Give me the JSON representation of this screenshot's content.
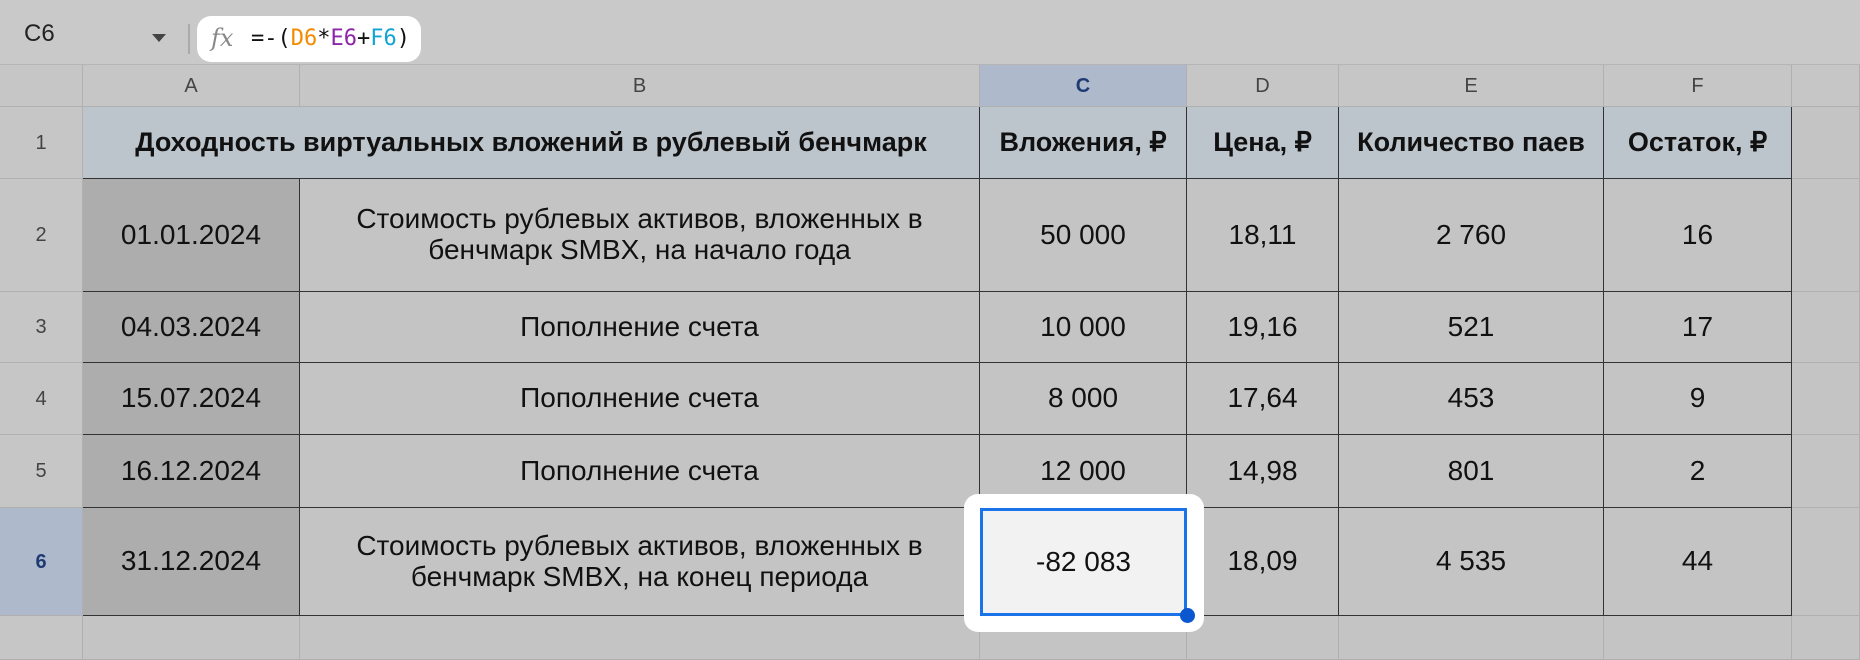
{
  "toolbar": {
    "name_box": "C6",
    "formula_prefix": "=-(",
    "ref1": "D6",
    "op1": "*",
    "ref2": "E6",
    "op2": "+",
    "ref3": "F6",
    "formula_suffix": ")",
    "ref_colors": [
      "#f28b00",
      "#8e24aa",
      "#12a4d4"
    ]
  },
  "columns": [
    "A",
    "B",
    "C",
    "D",
    "E",
    "F",
    ""
  ],
  "rows": [
    "1",
    "2",
    "3",
    "4",
    "5",
    "6",
    ""
  ],
  "selected_cell": "C6",
  "table": {
    "title": "Доходность виртуальных вложений в рублевый бенчмарк",
    "headers": [
      "Вложения, ₽",
      "Цена, ₽",
      "Количество паев",
      "Остаток, ₽"
    ],
    "data": [
      [
        "01.01.2024",
        "Стоимость рублевых активов, вложенных в бенчмарк SMBX, на начало года",
        "50 000",
        "18,11",
        "2 760",
        "16"
      ],
      [
        "04.03.2024",
        "Пополнение счета",
        "10 000",
        "19,16",
        "521",
        "17"
      ],
      [
        "15.07.2024",
        "Пополнение счета",
        "8 000",
        "17,64",
        "453",
        "9"
      ],
      [
        "16.12.2024",
        "Пополнение счета",
        "12 000",
        "14,98",
        "801",
        "2"
      ],
      [
        "31.12.2024",
        "Стоимость рублевых активов, вложенных в бенчмарк SMBX, на конец периода",
        "-82 083",
        "18,09",
        "4 535",
        "44"
      ]
    ]
  }
}
